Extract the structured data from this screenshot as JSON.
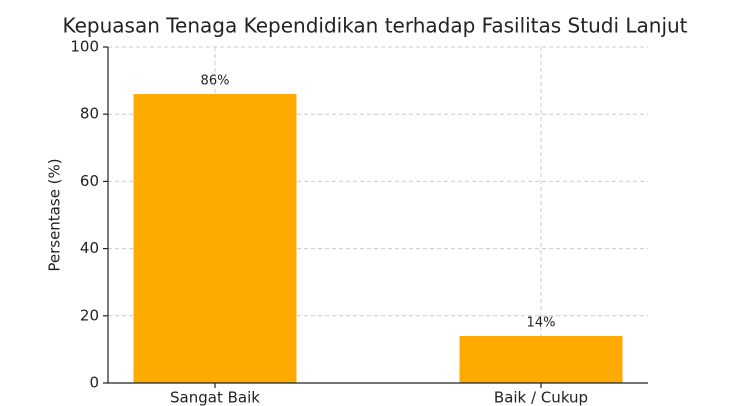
{
  "chart_data": {
    "type": "bar",
    "title": "Kepuasan Tenaga Kependidikan terhadap Fasilitas Studi Lanjut",
    "y_label": "Persentase (%)",
    "categories": [
      "Sangat Baik",
      "Baik / Cukup"
    ],
    "values": [
      86,
      14
    ],
    "value_labels": [
      "86%",
      "14%"
    ],
    "color": "#ffaa00",
    "ylim": [
      0,
      100
    ],
    "yticks": [
      0,
      20,
      40,
      60,
      80,
      100
    ],
    "grid": true
  }
}
